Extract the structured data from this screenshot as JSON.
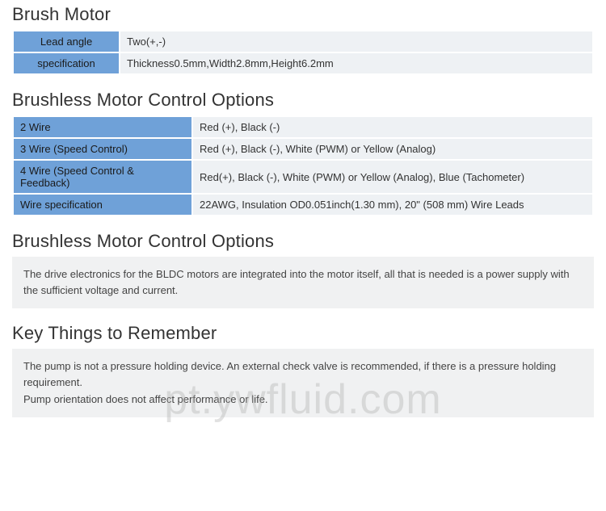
{
  "colors": {
    "blue_cell": "#6fa1d8",
    "light_cell": "#eef1f4",
    "note_bg": "#f0f1f2",
    "title_color": "#333333",
    "text_color": "#333333"
  },
  "section1": {
    "title": "Brush Motor",
    "rows": [
      {
        "label": "Lead angle",
        "value": "Two(+,-)"
      },
      {
        "label": "specification",
        "value": "Thickness0.5mm,Width2.8mm,Height6.2mm"
      }
    ]
  },
  "section2": {
    "title": "Brushless Motor Control Options",
    "rows": [
      {
        "label": "2 Wire",
        "value": "Red (+), Black (-)"
      },
      {
        "label": "3 Wire (Speed Control)",
        "value": "Red (+), Black (-), White (PWM) or Yellow (Analog)"
      },
      {
        "label": "4 Wire (Speed Control & Feedback)",
        "value": "Red(+), Black (-), White (PWM) or Yellow (Analog), Blue (Tachometer)"
      },
      {
        "label": "Wire specification",
        "value": "22AWG, Insulation OD0.051inch(1.30 mm), 20\" (508 mm) Wire Leads"
      }
    ]
  },
  "section3": {
    "title": "Brushless Motor Control Options",
    "note": "The drive electronics for the BLDC motors are integrated into the motor itself, all that is needed is a power supply with the sufficient voltage and current."
  },
  "section4": {
    "title": "Key Things to Remember",
    "note_line1": "The pump is not a pressure holding device. An external check valve is recommended, if there is a pressure holding requirement.",
    "note_line2": "Pump orientation does not affect performance or life."
  },
  "watermark": "pt.ywfluid.com"
}
